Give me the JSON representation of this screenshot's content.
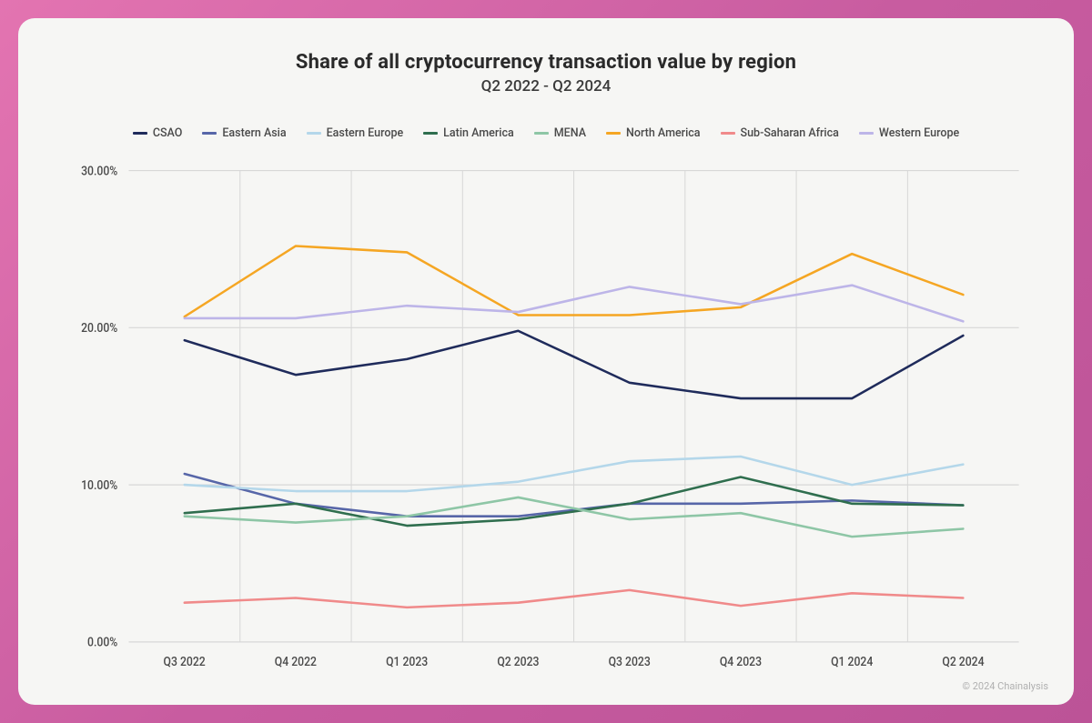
{
  "outer_bg_gradient": [
    "#e374b1",
    "#c85ca0",
    "#bc5397"
  ],
  "card_bg": "#f6f6f4",
  "title": "Share of all cryptocurrency transaction value by region",
  "subtitle": "Q2 2022 - Q2 2024",
  "credit": "© 2024 Chainalysis",
  "chart": {
    "type": "line",
    "categories": [
      "Q3 2022",
      "Q4 2022",
      "Q1 2023",
      "Q2 2023",
      "Q3 2023",
      "Q4 2023",
      "Q1 2024",
      "Q2 2024"
    ],
    "ylim": [
      0,
      30
    ],
    "ytick_step": 10,
    "ytick_format": "percent_2dp",
    "ytick_labels": [
      "0.00%",
      "10.00%",
      "20.00%",
      "30.00%"
    ],
    "grid_color": "#d7d7d7",
    "axis_label_color": "#4a4a4a",
    "label_fontsize": 12,
    "line_width": 2.2,
    "series": [
      {
        "name": "CSAO",
        "color": "#1f2b5b",
        "values": [
          19.2,
          17.0,
          18.0,
          19.8,
          16.5,
          15.5,
          15.5,
          19.5
        ]
      },
      {
        "name": "Eastern Asia",
        "color": "#5766a8",
        "values": [
          10.7,
          8.8,
          8.0,
          8.0,
          8.8,
          8.8,
          9.0,
          8.7
        ]
      },
      {
        "name": "Eastern Europe",
        "color": "#b4d7ea",
        "values": [
          10.0,
          9.6,
          9.6,
          10.2,
          11.5,
          11.8,
          10.0,
          11.3
        ]
      },
      {
        "name": "Latin America",
        "color": "#2f6e4e",
        "values": [
          8.2,
          8.8,
          7.4,
          7.8,
          8.8,
          10.5,
          8.8,
          8.7
        ]
      },
      {
        "name": "MENA",
        "color": "#8ec6a6",
        "values": [
          8.0,
          7.6,
          8.0,
          9.2,
          7.8,
          8.2,
          6.7,
          7.2
        ]
      },
      {
        "name": "North America",
        "color": "#f5a623",
        "values": [
          20.7,
          25.2,
          24.8,
          20.8,
          20.8,
          21.3,
          24.7,
          22.1
        ]
      },
      {
        "name": "Sub-Saharan Africa",
        "color": "#f08a8a",
        "values": [
          2.5,
          2.8,
          2.2,
          2.5,
          3.3,
          2.3,
          3.1,
          2.8
        ]
      },
      {
        "name": "Western Europe",
        "color": "#bdb5e8",
        "values": [
          20.6,
          20.6,
          21.4,
          21.0,
          22.6,
          21.5,
          22.7,
          20.4
        ]
      }
    ]
  }
}
